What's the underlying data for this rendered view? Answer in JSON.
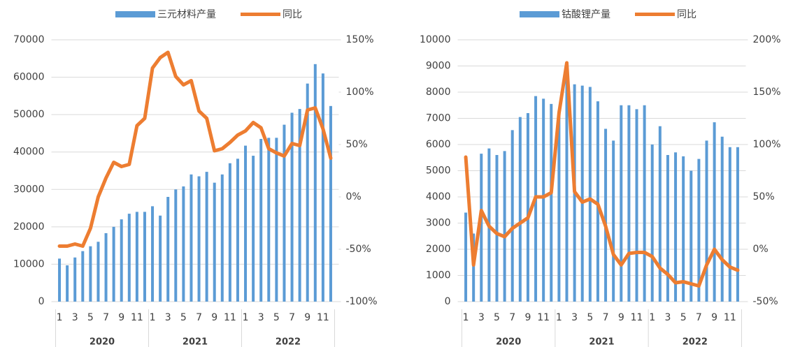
{
  "chart_data": [
    {
      "type": "bar_line",
      "categories": [
        "1",
        null,
        "3",
        null,
        "5",
        null,
        "7",
        null,
        "9",
        null,
        "11",
        null,
        "1",
        null,
        "3",
        null,
        "5",
        null,
        "7",
        null,
        "9",
        null,
        "11",
        null,
        "1",
        null,
        "3",
        null,
        "5",
        null,
        "7",
        null,
        "9",
        null,
        "11",
        null
      ],
      "groups": [
        "2020",
        "2021",
        "2022"
      ],
      "series": [
        {
          "name": "三元材料产量",
          "type": "bar",
          "color": "#5b9bd5",
          "values": [
            11500,
            9700,
            11800,
            13500,
            14800,
            16000,
            18300,
            20000,
            22000,
            23500,
            24000,
            24000,
            25500,
            23000,
            28000,
            30000,
            30800,
            34000,
            33500,
            34700,
            31800,
            34000,
            37000,
            38200,
            41700,
            39000,
            43500,
            43800,
            43800,
            47300,
            50500,
            51500,
            58300,
            63500,
            61000,
            52300
          ]
        },
        {
          "name": "同比",
          "type": "line",
          "axis": "y2",
          "color": "#ed7d31",
          "values": [
            -47,
            -47,
            -45,
            -47,
            -30,
            0,
            18,
            33,
            29,
            31,
            68,
            75,
            123,
            133,
            138,
            115,
            107,
            111,
            82,
            75,
            44,
            46,
            52,
            59,
            63,
            71,
            66,
            46,
            42,
            39,
            51,
            49,
            83,
            85,
            65,
            37
          ]
        }
      ],
      "ylim": [
        0,
        70000
      ],
      "yticks": [
        0,
        10000,
        20000,
        30000,
        40000,
        50000,
        60000,
        70000
      ],
      "y2lim": [
        -100,
        150
      ],
      "y2ticks": [
        {
          "value": -100,
          "label": "-100%"
        },
        {
          "value": -50,
          "label": "-50%"
        },
        {
          "value": 0,
          "label": "0%"
        },
        {
          "value": 50,
          "label": "50%"
        },
        {
          "value": 100,
          "label": "100%"
        },
        {
          "value": 150,
          "label": "150%"
        }
      ],
      "grid": true
    },
    {
      "type": "bar_line",
      "categories": [
        "1",
        null,
        "3",
        null,
        "5",
        null,
        "7",
        null,
        "9",
        null,
        "11",
        null,
        "1",
        null,
        "3",
        null,
        "5",
        null,
        "7",
        null,
        "9",
        null,
        "11",
        null,
        "1",
        null,
        "3",
        null,
        "5",
        null,
        "7",
        null,
        "9",
        null,
        "11",
        null
      ],
      "groups": [
        "2020",
        "2021",
        "2022"
      ],
      "series": [
        {
          "name": "钴酸锂产量",
          "type": "bar",
          "color": "#5b9bd5",
          "values": [
            3400,
            2600,
            5650,
            5850,
            5600,
            5750,
            6550,
            7050,
            7200,
            7850,
            7750,
            7550,
            7300,
            8700,
            8300,
            8250,
            8200,
            7650,
            6600,
            6150,
            7500,
            7500,
            7350,
            7500,
            6000,
            6700,
            5600,
            5700,
            5550,
            5000,
            5450,
            6150,
            6850,
            6300,
            5900,
            5900
          ]
        },
        {
          "name": "同比",
          "type": "line",
          "axis": "y2",
          "color": "#ed7d31",
          "values": [
            88,
            -15,
            37,
            22,
            15,
            12,
            20,
            25,
            30,
            50,
            50,
            54,
            130,
            178,
            55,
            45,
            48,
            43,
            22,
            -5,
            -15,
            -4,
            -3,
            -3,
            -7,
            -18,
            -24,
            -32,
            -31,
            -33,
            -35,
            -15,
            0,
            -10,
            -17,
            -20
          ]
        }
      ],
      "ylim": [
        0,
        10000
      ],
      "yticks": [
        0,
        1000,
        2000,
        3000,
        4000,
        5000,
        6000,
        7000,
        8000,
        9000,
        10000
      ],
      "y2lim": [
        -50,
        200
      ],
      "y2ticks": [
        {
          "value": -50,
          "label": "-50%"
        },
        {
          "value": 0,
          "label": "0%"
        },
        {
          "value": 50,
          "label": "50%"
        },
        {
          "value": 100,
          "label": "100%"
        },
        {
          "value": 150,
          "label": "150%"
        },
        {
          "value": 200,
          "label": "200%"
        }
      ],
      "grid": true
    }
  ]
}
